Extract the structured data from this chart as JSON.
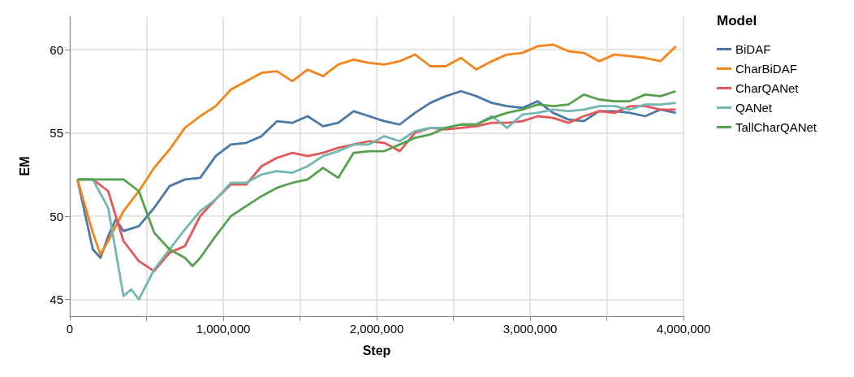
{
  "chart_data": {
    "type": "line",
    "xlabel": "Step",
    "ylabel": "EM",
    "legend_title": "Model",
    "legend": "top right",
    "grid": true,
    "xlim": [
      0,
      4000000
    ],
    "xticks": [
      0,
      {
        "value": 500000,
        "label": null
      },
      {
        "value": 1000000,
        "label": "1,000,000"
      },
      {
        "value": 1500000,
        "label": null
      },
      {
        "value": 2000000,
        "label": "2,000,000"
      },
      {
        "value": 2500000,
        "label": null
      },
      {
        "value": 3000000,
        "label": "3,000,000"
      },
      {
        "value": 3500000,
        "label": null
      },
      {
        "value": 4000000,
        "label": "4,000,000"
      }
    ],
    "ylim": [
      44,
      62
    ],
    "yticks": [
      45,
      50,
      55,
      60
    ],
    "x": [
      50000,
      150000,
      250000,
      350000,
      450000,
      550000,
      650000,
      750000,
      850000,
      950000,
      1050000,
      1150000,
      1250000,
      1350000,
      1450000,
      1550000,
      1650000,
      1750000,
      1850000,
      1950000,
      2050000,
      2150000,
      2250000,
      2350000,
      2450000,
      2550000,
      2650000,
      2750000,
      2850000,
      2950000,
      3050000,
      3150000,
      3250000,
      3350000,
      3450000,
      3550000,
      3650000,
      3750000,
      3850000,
      3950000
    ],
    "series": [
      {
        "name": "BiDAF",
        "color": "#4c78a8",
        "x": [
          50000,
          150000,
          200000,
          250000,
          300000,
          350000,
          450000,
          550000,
          650000,
          750000,
          850000,
          950000,
          1050000,
          1150000,
          1250000,
          1350000,
          1450000,
          1550000,
          1650000,
          1750000,
          1850000,
          1950000,
          2050000,
          2150000,
          2250000,
          2350000,
          2450000,
          2550000,
          2650000,
          2750000,
          2850000,
          2950000,
          3050000,
          3150000,
          3250000,
          3350000,
          3450000,
          3550000,
          3650000,
          3750000,
          3850000,
          3950000
        ],
        "values": [
          52.2,
          48.0,
          47.5,
          48.8,
          49.8,
          49.1,
          49.4,
          50.5,
          51.8,
          52.2,
          52.3,
          53.6,
          54.3,
          54.4,
          54.8,
          55.7,
          55.6,
          56.0,
          55.4,
          55.6,
          56.3,
          56.0,
          55.7,
          55.5,
          56.2,
          56.8,
          57.2,
          57.5,
          57.2,
          56.8,
          56.6,
          56.5,
          56.9,
          56.2,
          55.8,
          55.7,
          56.3,
          56.3,
          56.2,
          56.0,
          56.4,
          56.2
        ]
      },
      {
        "name": "CharBiDAF",
        "color": "#f58518",
        "x": [
          50000,
          150000,
          200000,
          250000,
          350000,
          450000,
          550000,
          650000,
          750000,
          850000,
          950000,
          1050000,
          1150000,
          1250000,
          1350000,
          1450000,
          1550000,
          1650000,
          1750000,
          1850000,
          1950000,
          2050000,
          2150000,
          2250000,
          2350000,
          2450000,
          2550000,
          2650000,
          2750000,
          2850000,
          2950000,
          3050000,
          3150000,
          3250000,
          3350000,
          3450000,
          3550000,
          3650000,
          3750000,
          3850000,
          3950000
        ],
        "values": [
          52.2,
          49.0,
          47.7,
          48.5,
          50.3,
          51.5,
          52.9,
          54.0,
          55.3,
          56.0,
          56.6,
          57.6,
          58.1,
          58.6,
          58.7,
          58.1,
          58.8,
          58.4,
          59.1,
          59.4,
          59.2,
          59.1,
          59.3,
          59.7,
          59.0,
          59.0,
          59.5,
          58.8,
          59.3,
          59.7,
          59.8,
          60.2,
          60.3,
          59.9,
          59.8,
          59.3,
          59.7,
          59.6,
          59.5,
          59.3,
          60.2
        ]
      },
      {
        "name": "CharQANet",
        "color": "#e45756",
        "values": [
          52.2,
          52.2,
          51.5,
          48.5,
          47.3,
          46.7,
          47.8,
          48.2,
          50.0,
          51.0,
          51.9,
          51.9,
          53.0,
          53.5,
          53.8,
          53.6,
          53.8,
          54.1,
          54.3,
          54.5,
          54.4,
          53.9,
          55.0,
          55.3,
          55.2,
          55.3,
          55.4,
          55.6,
          55.6,
          55.7,
          56.0,
          55.9,
          55.6,
          56.0,
          56.3,
          56.2,
          56.6,
          56.6,
          56.4,
          56.4
        ]
      },
      {
        "name": "QANet",
        "color": "#72b7b2",
        "x": [
          50000,
          150000,
          250000,
          350000,
          400000,
          450000,
          550000,
          650000,
          750000,
          850000,
          950000,
          1050000,
          1150000,
          1250000,
          1350000,
          1450000,
          1550000,
          1650000,
          1750000,
          1850000,
          1950000,
          2050000,
          2150000,
          2250000,
          2350000,
          2450000,
          2550000,
          2650000,
          2750000,
          2850000,
          2950000,
          3050000,
          3150000,
          3250000,
          3350000,
          3450000,
          3550000,
          3650000,
          3750000,
          3850000,
          3950000
        ],
        "values": [
          52.2,
          52.2,
          50.5,
          45.2,
          45.6,
          45.0,
          46.8,
          48.0,
          49.2,
          50.3,
          51.0,
          52.0,
          52.0,
          52.5,
          52.7,
          52.6,
          53.0,
          53.6,
          53.9,
          54.3,
          54.3,
          54.8,
          54.5,
          55.1,
          55.3,
          55.3,
          55.5,
          55.5,
          56.0,
          55.3,
          56.1,
          56.2,
          56.4,
          56.3,
          56.4,
          56.6,
          56.6,
          56.4,
          56.7,
          56.7,
          56.8
        ]
      },
      {
        "name": "TallCharQANet",
        "color": "#54a24b",
        "x": [
          50000,
          150000,
          250000,
          350000,
          450000,
          550000,
          650000,
          750000,
          800000,
          850000,
          950000,
          1050000,
          1150000,
          1250000,
          1350000,
          1450000,
          1550000,
          1650000,
          1750000,
          1850000,
          1950000,
          2050000,
          2150000,
          2250000,
          2350000,
          2450000,
          2550000,
          2650000,
          2750000,
          2850000,
          2950000,
          3050000,
          3150000,
          3250000,
          3350000,
          3450000,
          3550000,
          3650000,
          3750000,
          3850000,
          3950000
        ],
        "values": [
          52.2,
          52.2,
          52.2,
          52.2,
          51.5,
          49.0,
          48.0,
          47.5,
          47.0,
          47.5,
          48.8,
          50.0,
          50.6,
          51.2,
          51.7,
          52.0,
          52.2,
          52.9,
          52.3,
          53.8,
          53.9,
          53.9,
          54.3,
          54.7,
          54.9,
          55.3,
          55.5,
          55.5,
          55.9,
          56.2,
          56.4,
          56.7,
          56.6,
          56.7,
          57.3,
          57.0,
          56.9,
          56.9,
          57.3,
          57.2,
          57.5
        ]
      }
    ]
  }
}
